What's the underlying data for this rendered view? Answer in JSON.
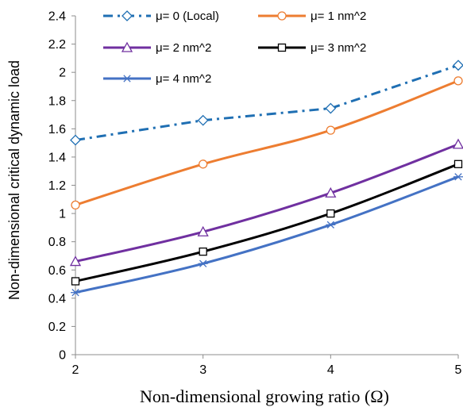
{
  "chart_data": {
    "type": "line",
    "xlabel": "Non-dimensional growing ratio (Ω)",
    "ylabel": "Non-dimensional critical dynamic load",
    "x": [
      2,
      3,
      4,
      5
    ],
    "xlim": [
      2,
      5
    ],
    "ylim": [
      0,
      2.4
    ],
    "x_ticks": [
      "2",
      "3",
      "4",
      "5"
    ],
    "y_ticks": [
      "0",
      "0.2",
      "0.4",
      "0.6",
      "0.8",
      "1",
      "1.2",
      "1.4",
      "1.6",
      "1.8",
      "2",
      "2.2",
      "2.4"
    ],
    "grid": false,
    "legend_position": "top",
    "series": [
      {
        "name": "μ= 0 (Local)",
        "values": [
          1.52,
          1.66,
          1.745,
          2.05
        ],
        "color": "#1f6fb3",
        "marker": "diamond",
        "line_style": "dash-dot"
      },
      {
        "name": "μ= 1 nm^2",
        "values": [
          1.06,
          1.35,
          1.59,
          1.94
        ],
        "color": "#ed7d31",
        "marker": "circle",
        "line_style": "solid"
      },
      {
        "name": "μ= 2 nm^2",
        "values": [
          0.66,
          0.87,
          1.145,
          1.49
        ],
        "color": "#7030a0",
        "marker": "triangle",
        "line_style": "solid"
      },
      {
        "name": "μ= 3 nm^2",
        "values": [
          0.52,
          0.73,
          1.0,
          1.35
        ],
        "color": "#000000",
        "marker": "square",
        "line_style": "solid"
      },
      {
        "name": "μ= 4 nm^2",
        "values": [
          0.44,
          0.645,
          0.92,
          1.26
        ],
        "color": "#4472c4",
        "marker": "asterisk",
        "line_style": "solid"
      }
    ]
  }
}
